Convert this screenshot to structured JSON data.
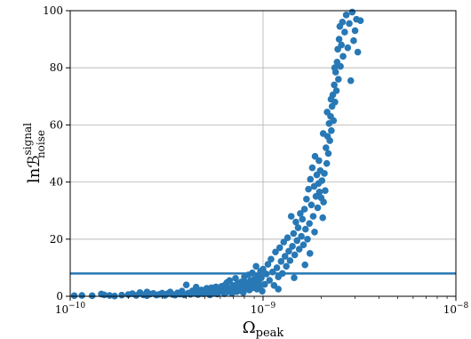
{
  "chart_data": {
    "type": "scatter",
    "title": "",
    "xlabel": "Ω",
    "xlabel_sub": "peak",
    "ylabel": "lnℬ",
    "ylabel_sup": "signal",
    "ylabel_sub": "noise",
    "xscale": "log",
    "xlim": [
      1e-10,
      1e-08
    ],
    "ylim": [
      0,
      100
    ],
    "grid": true,
    "x_ticks": [
      {
        "value": 1e-10,
        "base": "10",
        "exp": "−10"
      },
      {
        "value": 1e-09,
        "base": "10",
        "exp": "−9"
      },
      {
        "value": 1e-08,
        "base": "10",
        "exp": "−8"
      }
    ],
    "y_ticks": [
      "0",
      "20",
      "40",
      "60",
      "80",
      "100"
    ],
    "threshold": 8,
    "colors": {
      "points": "#2878b5",
      "threshold": "#2878b5",
      "grid": "#b0b0b0"
    },
    "series": [
      {
        "points": [
          [
            1.05e-10,
            0.2
          ],
          [
            1.15e-10,
            0.3
          ],
          [
            1.3e-10,
            0.2
          ],
          [
            1.45e-10,
            0.8
          ],
          [
            1.6e-10,
            0.3
          ],
          [
            1.7e-10,
            0.1
          ],
          [
            1.85e-10,
            0.4
          ],
          [
            2e-10,
            0.6
          ],
          [
            2.1e-10,
            0.9
          ],
          [
            2.2e-10,
            0.3
          ],
          [
            2.3e-10,
            1.3
          ],
          [
            2.4e-10,
            0.5
          ],
          [
            2.5e-10,
            0.2
          ],
          [
            2.6e-10,
            0.8
          ],
          [
            2.7e-10,
            1.0
          ],
          [
            2.8e-10,
            0.4
          ],
          [
            2.9e-10,
            0.7
          ],
          [
            3e-10,
            1.1
          ],
          [
            3.1e-10,
            0.3
          ],
          [
            3.2e-10,
            0.9
          ],
          [
            3.3e-10,
            1.5
          ],
          [
            3.4e-10,
            0.6
          ],
          [
            3.5e-10,
            0.4
          ],
          [
            3.6e-10,
            1.2
          ],
          [
            3.7e-10,
            0.8
          ],
          [
            3.8e-10,
            1.8
          ],
          [
            3.9e-10,
            0.5
          ],
          [
            4e-10,
            4.0
          ],
          [
            4.1e-10,
            1.1
          ],
          [
            4.2e-10,
            0.7
          ],
          [
            4.3e-10,
            1.9
          ],
          [
            4.4e-10,
            1.0
          ],
          [
            4.5e-10,
            2.5
          ],
          [
            4.6e-10,
            0.6
          ],
          [
            4.7e-10,
            1.4
          ],
          [
            4.8e-10,
            2.2
          ],
          [
            4.9e-10,
            0.9
          ],
          [
            5e-10,
            1.6
          ],
          [
            5.1e-10,
            2.8
          ],
          [
            5.2e-10,
            1.2
          ],
          [
            5.3e-10,
            0.5
          ],
          [
            5.4e-10,
            3.0
          ],
          [
            5.5e-10,
            2.0
          ],
          [
            5.6e-10,
            1.3
          ],
          [
            5.7e-10,
            3.3
          ],
          [
            5.8e-10,
            0.8
          ],
          [
            5.9e-10,
            2.6
          ],
          [
            6e-10,
            1.7
          ],
          [
            6.1e-10,
            3.5
          ],
          [
            6.2e-10,
            2.1
          ],
          [
            6.3e-10,
            0.9
          ],
          [
            6.4e-10,
            4.2
          ],
          [
            6.5e-10,
            1.5
          ],
          [
            6.6e-10,
            2.9
          ],
          [
            6.7e-10,
            5.5
          ],
          [
            6.8e-10,
            2.3
          ],
          [
            6.9e-10,
            1.1
          ],
          [
            7e-10,
            3.8
          ],
          [
            7.1e-10,
            2.6
          ],
          [
            7.2e-10,
            6.3
          ],
          [
            7.3e-10,
            1.6
          ],
          [
            7.4e-10,
            4.5
          ],
          [
            7.5e-10,
            3.1
          ],
          [
            7.6e-10,
            2.0
          ],
          [
            7.7e-10,
            5.0
          ],
          [
            7.8e-10,
            3.6
          ],
          [
            7.9e-10,
            1.3
          ],
          [
            8e-10,
            6.8
          ],
          [
            8.1e-10,
            2.8
          ],
          [
            8.2e-10,
            4.8
          ],
          [
            8.3e-10,
            3.3
          ],
          [
            8.4e-10,
            7.5
          ],
          [
            8.5e-10,
            2.2
          ],
          [
            8.6e-10,
            5.4
          ],
          [
            8.7e-10,
            4.0
          ],
          [
            8.8e-10,
            8.2
          ],
          [
            8.9e-10,
            3.0
          ],
          [
            9e-10,
            6.0
          ],
          [
            9.1e-10,
            4.6
          ],
          [
            9.2e-10,
            10.5
          ],
          [
            9.3e-10,
            2.5
          ],
          [
            9.4e-10,
            7.2
          ],
          [
            9.5e-10,
            5.2
          ],
          [
            9.6e-10,
            3.6
          ],
          [
            9.7e-10,
            8.8
          ],
          [
            9.8e-10,
            6.5
          ],
          [
            9.9e-10,
            1.8
          ],
          [
            1e-09,
            9.5
          ],
          [
            1.02e-09,
            4.2
          ],
          [
            1.04e-09,
            7.8
          ],
          [
            1.06e-09,
            11.2
          ],
          [
            1.08e-09,
            5.6
          ],
          [
            1.1e-09,
            13.0
          ],
          [
            1.12e-09,
            8.5
          ],
          [
            1.14e-09,
            3.8
          ],
          [
            1.16e-09,
            15.5
          ],
          [
            1.18e-09,
            10.0
          ],
          [
            1.2e-09,
            6.8
          ],
          [
            1.22e-09,
            17.0
          ],
          [
            1.24e-09,
            12.2
          ],
          [
            1.26e-09,
            8.0
          ],
          [
            1.28e-09,
            19.0
          ],
          [
            1.3e-09,
            14.0
          ],
          [
            1.32e-09,
            10.5
          ],
          [
            1.34e-09,
            20.5
          ],
          [
            1.36e-09,
            15.8
          ],
          [
            1.38e-09,
            12.5
          ],
          [
            1.4e-09,
            28.0
          ],
          [
            1.42e-09,
            17.5
          ],
          [
            1.44e-09,
            22.0
          ],
          [
            1.46e-09,
            14.5
          ],
          [
            1.48e-09,
            26.0
          ],
          [
            1.5e-09,
            19.5
          ],
          [
            1.52e-09,
            24.0
          ],
          [
            1.54e-09,
            16.5
          ],
          [
            1.56e-09,
            29.0
          ],
          [
            1.58e-09,
            21.0
          ],
          [
            1.6e-09,
            27.0
          ],
          [
            1.62e-09,
            18.0
          ],
          [
            1.64e-09,
            30.5
          ],
          [
            1.66e-09,
            23.5
          ],
          [
            1.68e-09,
            34.0
          ],
          [
            1.7e-09,
            20.0
          ],
          [
            1.72e-09,
            37.5
          ],
          [
            1.74e-09,
            25.5
          ],
          [
            1.76e-09,
            41.0
          ],
          [
            1.78e-09,
            32.0
          ],
          [
            1.8e-09,
            45.0
          ],
          [
            1.82e-09,
            28.0
          ],
          [
            1.84e-09,
            38.5
          ],
          [
            1.86e-09,
            49.0
          ],
          [
            1.88e-09,
            35.0
          ],
          [
            1.9e-09,
            42.5
          ],
          [
            1.92e-09,
            31.0
          ],
          [
            1.94e-09,
            39.5
          ],
          [
            1.96e-09,
            36.5
          ],
          [
            1.98e-09,
            44.0
          ],
          [
            2e-09,
            34.5
          ],
          [
            2.02e-09,
            40.5
          ],
          [
            2.04e-09,
            27.5
          ],
          [
            2.06e-09,
            33.0
          ],
          [
            2.08e-09,
            43.0
          ],
          [
            2.1e-09,
            37.0
          ],
          [
            2.12e-09,
            52.0
          ],
          [
            2.14e-09,
            46.5
          ],
          [
            2.16e-09,
            56.0
          ],
          [
            2.18e-09,
            50.0
          ],
          [
            2.2e-09,
            60.5
          ],
          [
            2.22e-09,
            54.5
          ],
          [
            2.24e-09,
            63.0
          ],
          [
            2.26e-09,
            58.0
          ],
          [
            2.28e-09,
            66.5
          ],
          [
            2.3e-09,
            70.5
          ],
          [
            2.32e-09,
            61.5
          ],
          [
            2.34e-09,
            74.0
          ],
          [
            2.36e-09,
            68.0
          ],
          [
            2.38e-09,
            78.5
          ],
          [
            2.4e-09,
            72.0
          ],
          [
            2.42e-09,
            82.0
          ],
          [
            2.44e-09,
            86.5
          ],
          [
            2.46e-09,
            76.0
          ],
          [
            2.48e-09,
            90.0
          ],
          [
            2.5e-09,
            94.5
          ],
          [
            2.52e-09,
            80.5
          ],
          [
            2.55e-09,
            88.0
          ],
          [
            2.58e-09,
            96.0
          ],
          [
            2.6e-09,
            84.0
          ],
          [
            2.65e-09,
            92.5
          ],
          [
            2.7e-09,
            98.5
          ],
          [
            2.75e-09,
            87.0
          ],
          [
            2.8e-09,
            95.5
          ],
          [
            2.85e-09,
            75.5
          ],
          [
            2.9e-09,
            99.5
          ],
          [
            2.95e-09,
            89.5
          ],
          [
            3e-09,
            93.0
          ],
          [
            3.05e-09,
            97.0
          ],
          [
            3.1e-09,
            85.5
          ],
          [
            3.2e-09,
            96.5
          ],
          [
            1.5e-10,
            0.5
          ],
          [
            2.5e-10,
            1.5
          ],
          [
            4.5e-10,
            3.2
          ],
          [
            6.5e-10,
            4.8
          ],
          [
            1.2e-09,
            2.5
          ],
          [
            1.45e-09,
            6.5
          ],
          [
            1.65e-09,
            11.0
          ],
          [
            1.75e-09,
            15.0
          ],
          [
            1.85e-09,
            22.5
          ],
          [
            1.95e-09,
            47.5
          ],
          [
            2.05e-09,
            57.0
          ],
          [
            2.15e-09,
            64.5
          ],
          [
            2.25e-09,
            69.0
          ],
          [
            2.35e-09,
            80.0
          ]
        ]
      }
    ]
  }
}
